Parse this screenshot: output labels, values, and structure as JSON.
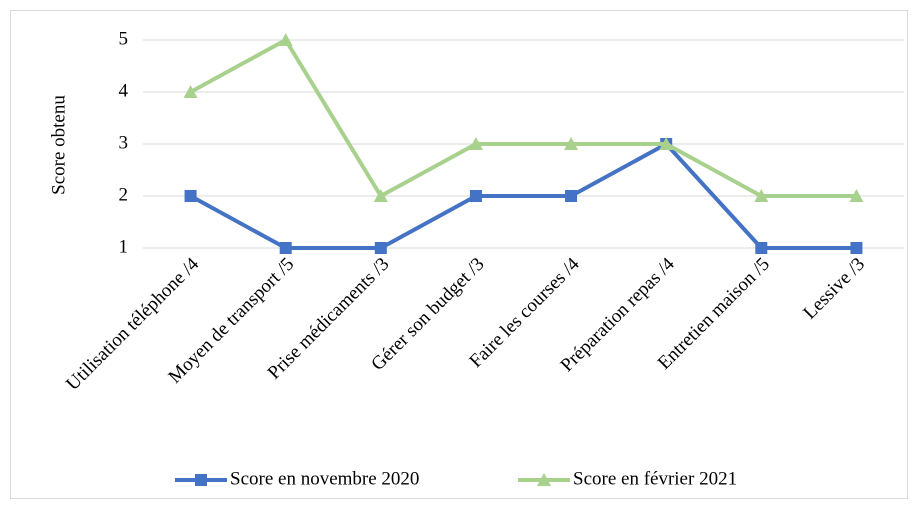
{
  "chart_data": {
    "type": "line",
    "y_label": "Score obtenu",
    "categories": [
      "Utilisation téléphone /4",
      "Moyen de transport /5",
      "Prise médicaments /3",
      "Gérer son budget /3",
      "Faire les courses /4",
      "Préparation repas /4",
      "Entretien maison /5",
      "Lessive /3"
    ],
    "series": [
      {
        "name": "Score en novembre 2020",
        "color": "#4472c4",
        "marker": "square",
        "values": [
          2,
          1,
          1,
          2,
          2,
          3,
          1,
          1
        ]
      },
      {
        "name": "Score en février 2021",
        "color": "#a9d18e",
        "marker": "triangle",
        "values": [
          4,
          5,
          2,
          3,
          3,
          3,
          2,
          2
        ]
      }
    ],
    "ylim": [
      1,
      5
    ],
    "yticks": [
      1,
      2,
      3,
      4,
      5
    ],
    "grid": true,
    "legend": "bottom"
  }
}
